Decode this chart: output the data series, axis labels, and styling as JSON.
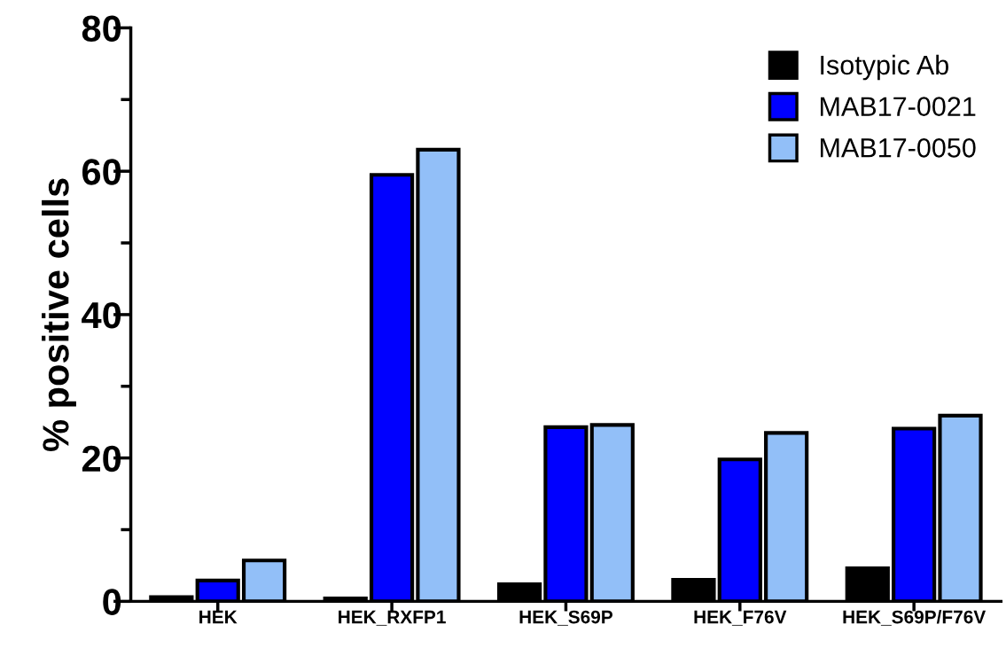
{
  "chart_data": {
    "type": "bar",
    "ylabel": "% positive cells",
    "categories": [
      "HEK",
      "HEK_RXFP1",
      "HEK_S69P",
      "HEK_F76V",
      "HEK_S69P/F76V"
    ],
    "series": [
      {
        "name": "Isotypic Ab",
        "color": "#000000",
        "values": [
          0.6,
          0.4,
          2.4,
          3.0,
          4.6
        ]
      },
      {
        "name": "MAB17-0021",
        "color": "#0000ff",
        "values": [
          2.9,
          59.5,
          24.3,
          19.8,
          24.1
        ]
      },
      {
        "name": "MAB17-0050",
        "color": "#92bff8",
        "values": [
          5.7,
          63.0,
          24.6,
          23.5,
          25.9
        ]
      }
    ],
    "ylim": [
      0,
      80
    ],
    "yticks": [
      0,
      {
        "value": 10,
        "label": null
      },
      20,
      {
        "value": 30,
        "label": null
      },
      40,
      {
        "value": 50,
        "label": null
      },
      60,
      {
        "value": 70,
        "label": null
      },
      80
    ],
    "legend": "top right",
    "grid": false
  }
}
